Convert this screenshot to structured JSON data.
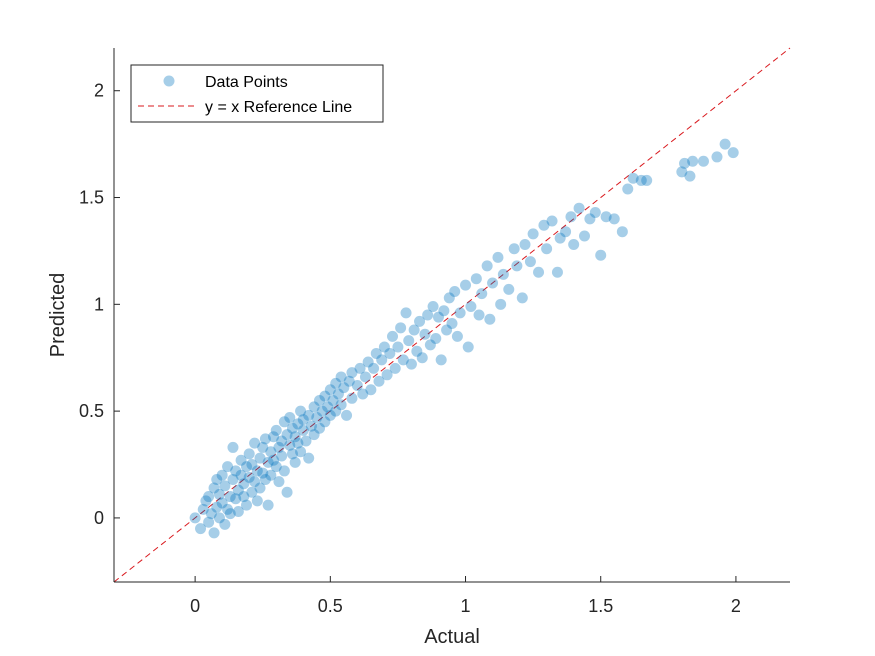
{
  "chart_data": {
    "type": "scatter",
    "title": "",
    "xlabel": "Actual",
    "ylabel": "Predicted",
    "xlim": [
      -0.3,
      2.2
    ],
    "ylim": [
      -0.3,
      2.2
    ],
    "xticks": [
      0,
      0.5,
      1,
      1.5,
      2
    ],
    "xtick_labels": [
      "0",
      "0.5",
      "1",
      "1.5",
      "2"
    ],
    "yticks": [
      0,
      0.5,
      1,
      1.5,
      2
    ],
    "ytick_labels": [
      "0",
      "0.5",
      "1",
      "1.5",
      "2"
    ],
    "grid": false,
    "legend_position": "top-left",
    "series": [
      {
        "name": "Data Points",
        "kind": "scatter",
        "color": "#0072BD",
        "opacity": 0.35,
        "points": [
          [
            0.0,
            0.0
          ],
          [
            0.02,
            -0.05
          ],
          [
            0.03,
            0.04
          ],
          [
            0.04,
            0.08
          ],
          [
            0.05,
            -0.02
          ],
          [
            0.05,
            0.1
          ],
          [
            0.06,
            0.02
          ],
          [
            0.07,
            0.14
          ],
          [
            0.07,
            -0.07
          ],
          [
            0.08,
            0.05
          ],
          [
            0.08,
            0.18
          ],
          [
            0.09,
            0.0
          ],
          [
            0.09,
            0.11
          ],
          [
            0.1,
            0.07
          ],
          [
            0.1,
            0.2
          ],
          [
            0.11,
            -0.03
          ],
          [
            0.11,
            0.15
          ],
          [
            0.12,
            0.04
          ],
          [
            0.12,
            0.24
          ],
          [
            0.13,
            0.1
          ],
          [
            0.13,
            0.02
          ],
          [
            0.14,
            0.18
          ],
          [
            0.14,
            0.33
          ],
          [
            0.15,
            0.09
          ],
          [
            0.15,
            0.22
          ],
          [
            0.16,
            0.13
          ],
          [
            0.16,
            0.03
          ],
          [
            0.17,
            0.2
          ],
          [
            0.17,
            0.27
          ],
          [
            0.18,
            0.1
          ],
          [
            0.18,
            0.16
          ],
          [
            0.19,
            0.24
          ],
          [
            0.19,
            0.06
          ],
          [
            0.2,
            0.19
          ],
          [
            0.2,
            0.3
          ],
          [
            0.21,
            0.12
          ],
          [
            0.21,
            0.25
          ],
          [
            0.22,
            0.17
          ],
          [
            0.22,
            0.35
          ],
          [
            0.23,
            0.08
          ],
          [
            0.23,
            0.22
          ],
          [
            0.24,
            0.28
          ],
          [
            0.24,
            0.14
          ],
          [
            0.25,
            0.33
          ],
          [
            0.25,
            0.21
          ],
          [
            0.26,
            0.18
          ],
          [
            0.26,
            0.37
          ],
          [
            0.27,
            0.26
          ],
          [
            0.27,
            0.06
          ],
          [
            0.28,
            0.31
          ],
          [
            0.28,
            0.2
          ],
          [
            0.29,
            0.38
          ],
          [
            0.29,
            0.27
          ],
          [
            0.3,
            0.24
          ],
          [
            0.3,
            0.41
          ],
          [
            0.31,
            0.33
          ],
          [
            0.31,
            0.17
          ],
          [
            0.32,
            0.36
          ],
          [
            0.32,
            0.29
          ],
          [
            0.33,
            0.45
          ],
          [
            0.33,
            0.22
          ],
          [
            0.34,
            0.39
          ],
          [
            0.34,
            0.12
          ],
          [
            0.35,
            0.34
          ],
          [
            0.35,
            0.47
          ],
          [
            0.36,
            0.3
          ],
          [
            0.36,
            0.42
          ],
          [
            0.37,
            0.38
          ],
          [
            0.37,
            0.26
          ],
          [
            0.38,
            0.44
          ],
          [
            0.38,
            0.35
          ],
          [
            0.39,
            0.5
          ],
          [
            0.39,
            0.31
          ],
          [
            0.4,
            0.41
          ],
          [
            0.4,
            0.46
          ],
          [
            0.41,
            0.36
          ],
          [
            0.42,
            0.48
          ],
          [
            0.42,
            0.28
          ],
          [
            0.43,
            0.43
          ],
          [
            0.44,
            0.52
          ],
          [
            0.44,
            0.39
          ],
          [
            0.45,
            0.47
          ],
          [
            0.46,
            0.55
          ],
          [
            0.46,
            0.42
          ],
          [
            0.47,
            0.5
          ],
          [
            0.48,
            0.57
          ],
          [
            0.48,
            0.45
          ],
          [
            0.49,
            0.52
          ],
          [
            0.5,
            0.6
          ],
          [
            0.5,
            0.48
          ],
          [
            0.51,
            0.55
          ],
          [
            0.52,
            0.63
          ],
          [
            0.52,
            0.5
          ],
          [
            0.53,
            0.58
          ],
          [
            0.54,
            0.66
          ],
          [
            0.54,
            0.53
          ],
          [
            0.55,
            0.61
          ],
          [
            0.56,
            0.48
          ],
          [
            0.57,
            0.64
          ],
          [
            0.58,
            0.56
          ],
          [
            0.58,
            0.68
          ],
          [
            0.6,
            0.62
          ],
          [
            0.61,
            0.7
          ],
          [
            0.62,
            0.58
          ],
          [
            0.63,
            0.66
          ],
          [
            0.64,
            0.73
          ],
          [
            0.65,
            0.6
          ],
          [
            0.66,
            0.7
          ],
          [
            0.67,
            0.77
          ],
          [
            0.68,
            0.64
          ],
          [
            0.69,
            0.74
          ],
          [
            0.7,
            0.8
          ],
          [
            0.71,
            0.67
          ],
          [
            0.72,
            0.77
          ],
          [
            0.73,
            0.85
          ],
          [
            0.74,
            0.7
          ],
          [
            0.75,
            0.8
          ],
          [
            0.76,
            0.89
          ],
          [
            0.77,
            0.74
          ],
          [
            0.78,
            0.96
          ],
          [
            0.79,
            0.83
          ],
          [
            0.8,
            0.72
          ],
          [
            0.81,
            0.88
          ],
          [
            0.82,
            0.78
          ],
          [
            0.83,
            0.92
          ],
          [
            0.84,
            0.75
          ],
          [
            0.85,
            0.86
          ],
          [
            0.86,
            0.95
          ],
          [
            0.87,
            0.81
          ],
          [
            0.88,
            0.99
          ],
          [
            0.89,
            0.84
          ],
          [
            0.9,
            0.94
          ],
          [
            0.91,
            0.74
          ],
          [
            0.92,
            0.97
          ],
          [
            0.93,
            0.88
          ],
          [
            0.94,
            1.03
          ],
          [
            0.95,
            0.91
          ],
          [
            0.96,
            1.06
          ],
          [
            0.97,
            0.85
          ],
          [
            0.98,
            0.96
          ],
          [
            1.0,
            1.09
          ],
          [
            1.01,
            0.8
          ],
          [
            1.02,
            0.99
          ],
          [
            1.04,
            1.12
          ],
          [
            1.05,
            0.95
          ],
          [
            1.06,
            1.05
          ],
          [
            1.08,
            1.18
          ],
          [
            1.09,
            0.93
          ],
          [
            1.1,
            1.1
          ],
          [
            1.12,
            1.22
          ],
          [
            1.13,
            1.0
          ],
          [
            1.14,
            1.14
          ],
          [
            1.16,
            1.07
          ],
          [
            1.18,
            1.26
          ],
          [
            1.19,
            1.18
          ],
          [
            1.21,
            1.03
          ],
          [
            1.22,
            1.28
          ],
          [
            1.24,
            1.2
          ],
          [
            1.25,
            1.33
          ],
          [
            1.27,
            1.15
          ],
          [
            1.29,
            1.37
          ],
          [
            1.3,
            1.26
          ],
          [
            1.32,
            1.39
          ],
          [
            1.34,
            1.15
          ],
          [
            1.35,
            1.31
          ],
          [
            1.37,
            1.34
          ],
          [
            1.39,
            1.41
          ],
          [
            1.4,
            1.28
          ],
          [
            1.42,
            1.45
          ],
          [
            1.44,
            1.32
          ],
          [
            1.46,
            1.4
          ],
          [
            1.48,
            1.43
          ],
          [
            1.5,
            1.23
          ],
          [
            1.52,
            1.41
          ],
          [
            1.55,
            1.4
          ],
          [
            1.58,
            1.34
          ],
          [
            1.6,
            1.54
          ],
          [
            1.62,
            1.59
          ],
          [
            1.65,
            1.58
          ],
          [
            1.67,
            1.58
          ],
          [
            1.8,
            1.62
          ],
          [
            1.81,
            1.66
          ],
          [
            1.83,
            1.6
          ],
          [
            1.84,
            1.67
          ],
          [
            1.88,
            1.67
          ],
          [
            1.93,
            1.69
          ],
          [
            1.96,
            1.75
          ],
          [
            1.99,
            1.71
          ]
        ]
      },
      {
        "name": "y = x Reference Line",
        "kind": "line",
        "color": "#D9191E",
        "dash": "dashed",
        "x": [
          -0.3,
          2.2
        ],
        "y": [
          -0.3,
          2.2
        ]
      }
    ]
  }
}
